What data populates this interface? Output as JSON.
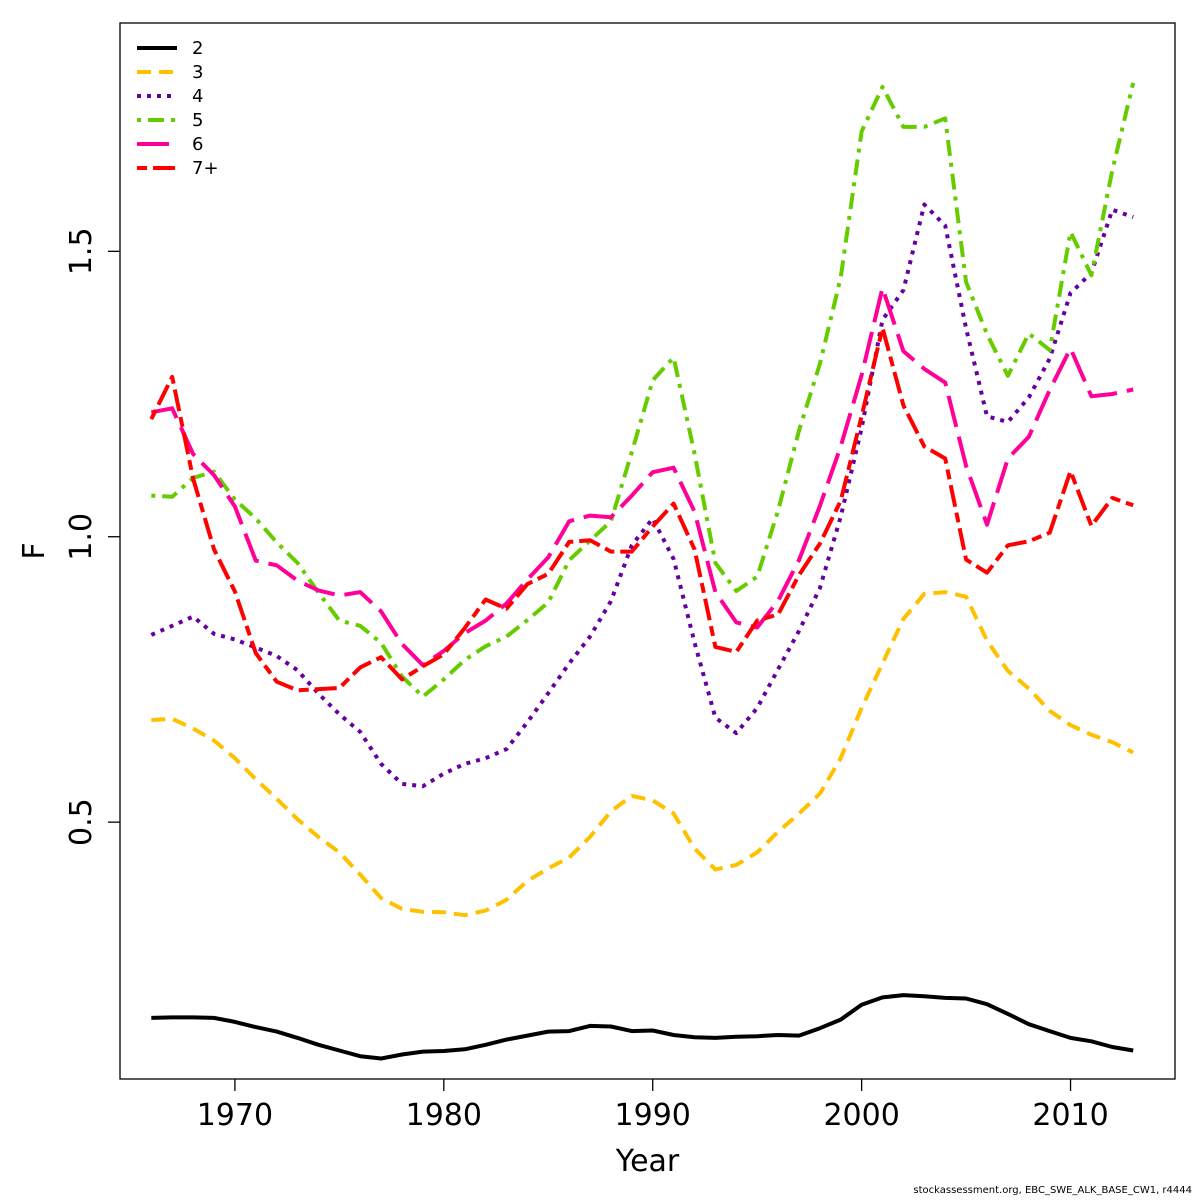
{
  "chart_data": {
    "type": "line",
    "xlabel": "Year",
    "ylabel": "F",
    "xlim": [
      1964.5,
      2015
    ],
    "ylim": [
      0.05,
      1.9
    ],
    "x_ticks": [
      1970,
      1980,
      1990,
      2000,
      2010
    ],
    "y_ticks": [
      0.5,
      1.0,
      1.5
    ],
    "y_tick_labels": [
      "0.5",
      "1.0",
      "1.5"
    ],
    "grid": false,
    "legend_position": "top-left",
    "x": [
      1966,
      1967,
      1968,
      1969,
      1970,
      1971,
      1972,
      1973,
      1974,
      1975,
      1976,
      1977,
      1978,
      1979,
      1980,
      1981,
      1982,
      1983,
      1984,
      1985,
      1986,
      1987,
      1988,
      1989,
      1990,
      1991,
      1992,
      1993,
      1994,
      1995,
      1996,
      1997,
      1998,
      1999,
      2000,
      2001,
      2002,
      2003,
      2004,
      2005,
      2006,
      2007,
      2008,
      2009,
      2010,
      2011,
      2012,
      2013
    ],
    "series": [
      {
        "name": "2",
        "color": "#000000",
        "dash": "solid",
        "values": [
          0.157,
          0.158,
          0.158,
          0.157,
          0.15,
          0.141,
          0.133,
          0.122,
          0.11,
          0.1,
          0.09,
          0.086,
          0.093,
          0.098,
          0.099,
          0.102,
          0.11,
          0.119,
          0.126,
          0.133,
          0.134,
          0.143,
          0.142,
          0.134,
          0.135,
          0.127,
          0.123,
          0.122,
          0.124,
          0.125,
          0.127,
          0.126,
          0.139,
          0.154,
          0.18,
          0.193,
          0.197,
          0.195,
          0.192,
          0.191,
          0.181,
          0.164,
          0.146,
          0.134,
          0.122,
          0.116,
          0.106,
          0.1
        ]
      },
      {
        "name": "3",
        "color": "#FFC000",
        "dash": "dashed",
        "values": [
          0.679,
          0.681,
          0.664,
          0.643,
          0.612,
          0.575,
          0.541,
          0.505,
          0.474,
          0.447,
          0.408,
          0.367,
          0.348,
          0.343,
          0.342,
          0.337,
          0.345,
          0.364,
          0.397,
          0.419,
          0.438,
          0.474,
          0.519,
          0.546,
          0.538,
          0.515,
          0.454,
          0.417,
          0.425,
          0.447,
          0.483,
          0.515,
          0.55,
          0.612,
          0.7,
          0.778,
          0.856,
          0.9,
          0.903,
          0.895,
          0.818,
          0.765,
          0.734,
          0.695,
          0.67,
          0.653,
          0.64,
          0.622
        ]
      },
      {
        "name": "4",
        "color": "#6600A0",
        "dash": "dotted",
        "values": [
          0.828,
          0.844,
          0.86,
          0.83,
          0.82,
          0.806,
          0.791,
          0.766,
          0.725,
          0.689,
          0.658,
          0.602,
          0.567,
          0.563,
          0.585,
          0.602,
          0.612,
          0.628,
          0.675,
          0.726,
          0.778,
          0.825,
          0.887,
          0.985,
          1.032,
          0.961,
          0.815,
          0.683,
          0.656,
          0.7,
          0.768,
          0.835,
          0.91,
          1.035,
          1.19,
          1.38,
          1.432,
          1.582,
          1.545,
          1.365,
          1.211,
          1.201,
          1.244,
          1.312,
          1.427,
          1.462,
          1.573,
          1.56
        ]
      },
      {
        "name": "5",
        "color": "#66CC00",
        "dash": "dashdot",
        "values": [
          1.072,
          1.07,
          1.103,
          1.114,
          1.065,
          1.032,
          0.99,
          0.954,
          0.902,
          0.853,
          0.844,
          0.814,
          0.755,
          0.72,
          0.75,
          0.784,
          0.808,
          0.825,
          0.854,
          0.885,
          0.959,
          0.993,
          1.027,
          1.148,
          1.274,
          1.314,
          1.146,
          0.954,
          0.905,
          0.93,
          1.046,
          1.186,
          1.303,
          1.454,
          1.71,
          1.788,
          1.718,
          1.718,
          1.733,
          1.446,
          1.355,
          1.282,
          1.356,
          1.327,
          1.534,
          1.458,
          1.642,
          1.795
        ]
      },
      {
        "name": "6",
        "color": "#FF0099",
        "dash": "longdash",
        "values": [
          1.218,
          1.225,
          1.145,
          1.108,
          1.053,
          0.958,
          0.95,
          0.923,
          0.906,
          0.897,
          0.903,
          0.869,
          0.812,
          0.775,
          0.8,
          0.831,
          0.853,
          0.883,
          0.925,
          0.964,
          1.027,
          1.037,
          1.034,
          1.072,
          1.113,
          1.121,
          1.044,
          0.903,
          0.85,
          0.841,
          0.888,
          0.959,
          1.054,
          1.158,
          1.283,
          1.436,
          1.325,
          1.294,
          1.27,
          1.124,
          1.021,
          1.137,
          1.175,
          1.257,
          1.33,
          1.246,
          1.25,
          1.258
        ]
      },
      {
        "name": "7+",
        "color": "#FF0000",
        "dash": "twodash",
        "values": [
          1.206,
          1.28,
          1.102,
          0.978,
          0.904,
          0.796,
          0.746,
          0.731,
          0.733,
          0.735,
          0.771,
          0.789,
          0.75,
          0.773,
          0.794,
          0.84,
          0.89,
          0.874,
          0.917,
          0.935,
          0.991,
          0.994,
          0.974,
          0.974,
          1.018,
          1.058,
          0.978,
          0.807,
          0.798,
          0.853,
          0.864,
          0.933,
          0.988,
          1.063,
          1.211,
          1.366,
          1.23,
          1.158,
          1.137,
          0.96,
          0.937,
          0.985,
          0.992,
          1.007,
          1.115,
          1.019,
          1.068,
          1.055
        ]
      }
    ]
  },
  "footer": {
    "caption": "stockassessment.org, EBC_SWE_ALK_BASE_CW1, r4444"
  }
}
